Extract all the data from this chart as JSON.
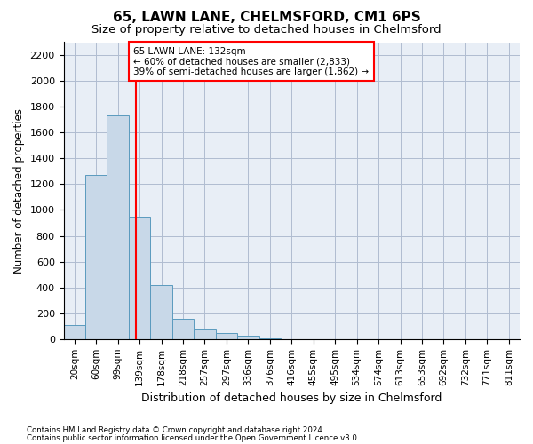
{
  "title": "65, LAWN LANE, CHELMSFORD, CM1 6PS",
  "subtitle": "Size of property relative to detached houses in Chelmsford",
  "xlabel": "Distribution of detached houses by size in Chelmsford",
  "ylabel": "Number of detached properties",
  "footnote1": "Contains HM Land Registry data © Crown copyright and database right 2024.",
  "footnote2": "Contains public sector information licensed under the Open Government Licence v3.0.",
  "bins": [
    "20sqm",
    "60sqm",
    "99sqm",
    "139sqm",
    "178sqm",
    "218sqm",
    "257sqm",
    "297sqm",
    "336sqm",
    "376sqm",
    "416sqm",
    "455sqm",
    "495sqm",
    "534sqm",
    "574sqm",
    "613sqm",
    "653sqm",
    "692sqm",
    "732sqm",
    "771sqm",
    "811sqm"
  ],
  "values": [
    110,
    1270,
    1730,
    950,
    415,
    155,
    75,
    45,
    25,
    5,
    2,
    1,
    0,
    0,
    0,
    0,
    0,
    0,
    0,
    0,
    0
  ],
  "bar_color": "#c8d8e8",
  "bar_edge_color": "#5a9abe",
  "red_line_x": 2.82,
  "annotation_line1": "65 LAWN LANE: 132sqm",
  "annotation_line2": "← 60% of detached houses are smaller (2,833)",
  "annotation_line3": "39% of semi-detached houses are larger (1,862) →",
  "ylim": [
    0,
    2300
  ],
  "yticks": [
    0,
    200,
    400,
    600,
    800,
    1000,
    1200,
    1400,
    1600,
    1800,
    2000,
    2200
  ],
  "grid_color": "#b0bcd0",
  "background_color": "#e8eef6",
  "annotation_fontsize": 7.5,
  "title_fontsize": 11,
  "subtitle_fontsize": 9.5
}
